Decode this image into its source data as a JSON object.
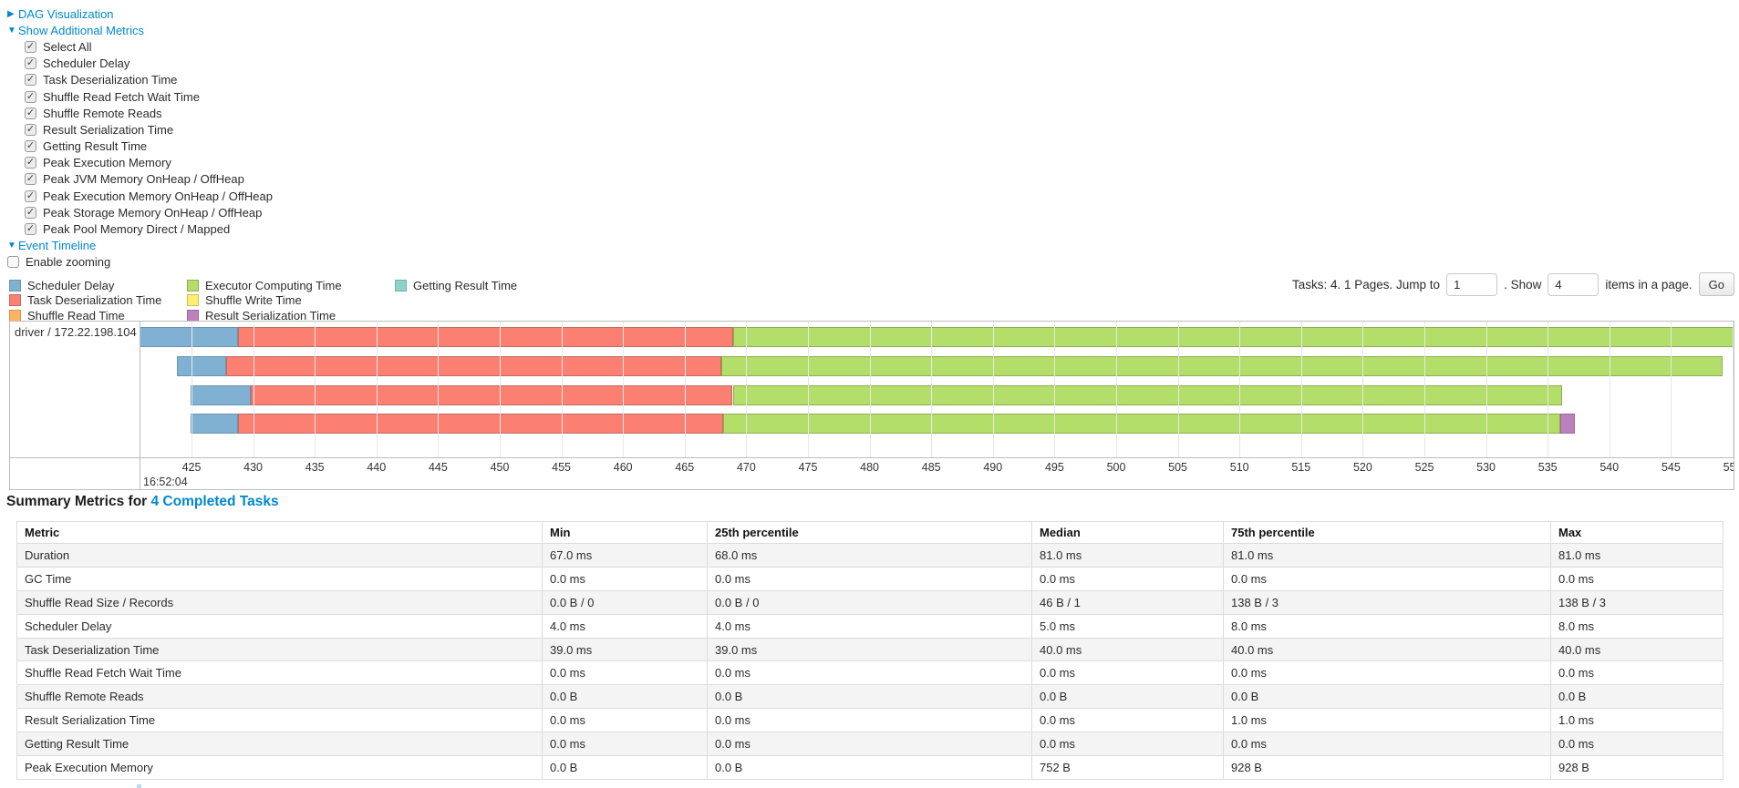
{
  "colors": {
    "link": "#0088CC",
    "metrics": {
      "scheduler_delay": {
        "fill": "#80B1D3",
        "stroke": "#6B94B0"
      },
      "task_deserialization": {
        "fill": "#FB8072",
        "stroke": "#C26B62"
      },
      "shuffle_read": {
        "fill": "#FDB462",
        "stroke": "#D49451"
      },
      "executor_computing": {
        "fill": "#B3DE69",
        "stroke": "#8EAE53"
      },
      "shuffle_write": {
        "fill": "#FFED6F",
        "stroke": "#CDBE5A"
      },
      "result_serialization": {
        "fill": "#BC80BD",
        "stroke": "#9A699B"
      },
      "getting_result": {
        "fill": "#8DD3C7",
        "stroke": "#74AFA4"
      }
    }
  },
  "controls": {
    "dag_link": "DAG Visualization",
    "metrics_link": "Show Additional Metrics",
    "metric_checkboxes": [
      "Select All",
      "Scheduler Delay",
      "Task Deserialization Time",
      "Shuffle Read Fetch Wait Time",
      "Shuffle Remote Reads",
      "Result Serialization Time",
      "Getting Result Time",
      "Peak Execution Memory",
      "Peak JVM Memory OnHeap / OffHeap",
      "Peak Execution Memory OnHeap / OffHeap",
      "Peak Storage Memory OnHeap / OffHeap",
      "Peak Pool Memory Direct / Mapped"
    ],
    "metric_checkboxes_checked": true,
    "event_timeline_link": "Event Timeline",
    "enable_zooming_label": "Enable zooming",
    "enable_zooming_checked": false
  },
  "pagination": {
    "tasks_text": "Tasks: 4. 1 Pages. Jump to",
    "jump_value": "1",
    "show_label": ". Show",
    "show_value": "4",
    "items_label": "items in a page.",
    "go_label": "Go"
  },
  "legend": {
    "columns": [
      [
        {
          "metric": "scheduler_delay",
          "label": "Scheduler Delay"
        },
        {
          "metric": "task_deserialization",
          "label": "Task Deserialization Time"
        },
        {
          "metric": "shuffle_read",
          "label": "Shuffle Read Time"
        }
      ],
      [
        {
          "metric": "executor_computing",
          "label": "Executor Computing Time"
        },
        {
          "metric": "shuffle_write",
          "label": "Shuffle Write Time"
        },
        {
          "metric": "result_serialization",
          "label": "Result Serialization Time"
        }
      ],
      [
        {
          "metric": "getting_result",
          "label": "Getting Result Time"
        }
      ]
    ],
    "column_offsets": [
      0,
      195,
      423
    ]
  },
  "chart_data": {
    "type": "timeline-gantt",
    "group_label": "driver / 172.22.198.104",
    "axis_time_label": "16:52:04",
    "axis_start": 425,
    "axis_end": 550,
    "axis_step": 5,
    "axis_ticks": [
      "425",
      "430",
      "435",
      "440",
      "445",
      "450",
      "455",
      "460",
      "465",
      "470",
      "475",
      "480",
      "485",
      "490",
      "495",
      "500",
      "505",
      "510",
      "515",
      "520",
      "525",
      "530",
      "535",
      "540",
      "545",
      "550"
    ],
    "bars": [
      {
        "start": 420.8,
        "segments": [
          {
            "metric": "scheduler_delay",
            "end": 428.8
          },
          {
            "metric": "task_deserialization",
            "end": 468.9
          },
          {
            "metric": "executor_computing",
            "end": 551.0
          }
        ]
      },
      {
        "start": 423.8,
        "segments": [
          {
            "metric": "scheduler_delay",
            "end": 427.8
          },
          {
            "metric": "task_deserialization",
            "end": 468.0
          },
          {
            "metric": "executor_computing",
            "end": 549.2
          }
        ]
      },
      {
        "start": 424.9,
        "segments": [
          {
            "metric": "scheduler_delay",
            "end": 429.8
          },
          {
            "metric": "task_deserialization",
            "end": 468.9
          },
          {
            "metric": "executor_computing",
            "end": 536.2
          }
        ]
      },
      {
        "start": 424.9,
        "segments": [
          {
            "metric": "scheduler_delay",
            "end": 428.8
          },
          {
            "metric": "task_deserialization",
            "end": 468.1
          },
          {
            "metric": "executor_computing",
            "end": 536.0
          },
          {
            "metric": "result_serialization",
            "end": 537.2
          }
        ]
      }
    ]
  },
  "summary": {
    "heading_prefix": "Summary Metrics for ",
    "heading_link": "4 Completed Tasks",
    "table": {
      "headers": [
        "Metric",
        "Min",
        "25th percentile",
        "Median",
        "75th percentile",
        "Max"
      ],
      "rows": [
        [
          "Duration",
          "67.0 ms",
          "68.0 ms",
          "81.0 ms",
          "81.0 ms",
          "81.0 ms"
        ],
        [
          "GC Time",
          "0.0 ms",
          "0.0 ms",
          "0.0 ms",
          "0.0 ms",
          "0.0 ms"
        ],
        [
          "Shuffle Read Size / Records",
          "0.0 B / 0",
          "0.0 B / 0",
          "46 B / 1",
          "138 B / 3",
          "138 B / 3"
        ],
        [
          "Scheduler Delay",
          "4.0 ms",
          "4.0 ms",
          "5.0 ms",
          "8.0 ms",
          "8.0 ms"
        ],
        [
          "Task Deserialization Time",
          "39.0 ms",
          "39.0 ms",
          "40.0 ms",
          "40.0 ms",
          "40.0 ms"
        ],
        [
          "Shuffle Read Fetch Wait Time",
          "0.0 ms",
          "0.0 ms",
          "0.0 ms",
          "0.0 ms",
          "0.0 ms"
        ],
        [
          "Shuffle Remote Reads",
          "0.0 B",
          "0.0 B",
          "0.0 B",
          "0.0 B",
          "0.0 B"
        ],
        [
          "Result Serialization Time",
          "0.0 ms",
          "0.0 ms",
          "0.0 ms",
          "1.0 ms",
          "1.0 ms"
        ],
        [
          "Getting Result Time",
          "0.0 ms",
          "0.0 ms",
          "0.0 ms",
          "0.0 ms",
          "0.0 ms"
        ],
        [
          "Peak Execution Memory",
          "0.0 B",
          "0.0 B",
          "752 B",
          "928 B",
          "928 B"
        ]
      ]
    }
  }
}
